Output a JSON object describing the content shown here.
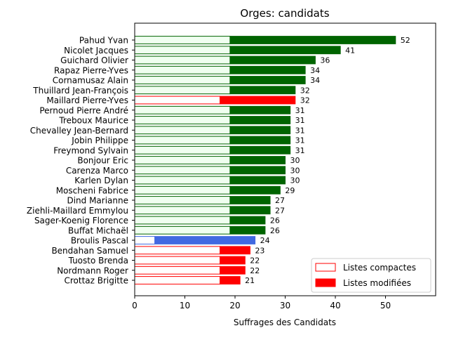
{
  "chart_data": {
    "type": "bar",
    "orientation": "horizontal",
    "stacked": true,
    "title": "Orges: candidats",
    "xlabel": "Suffrages des Candidats",
    "ylabel": "",
    "xlim": [
      0,
      60
    ],
    "xticks": [
      0,
      10,
      20,
      30,
      40,
      50
    ],
    "grid": false,
    "legend_position": "bottom-right",
    "legend": [
      {
        "label": "Listes compactes",
        "style": "outline",
        "color": "#ff0000"
      },
      {
        "label": "Listes modifiées",
        "style": "filled",
        "color": "#ff0000"
      }
    ],
    "colors": {
      "green": "#006400",
      "green_light": "#f0fff0",
      "red": "#ff0000",
      "red_light": "#ffffff",
      "blue": "#4169e1",
      "blue_light": "#ffffff"
    },
    "candidates": [
      {
        "name": "Pahud Yvan",
        "compact": 19,
        "total": 52,
        "group": "green"
      },
      {
        "name": "Nicolet Jacques",
        "compact": 19,
        "total": 41,
        "group": "green"
      },
      {
        "name": "Guichard Olivier",
        "compact": 19,
        "total": 36,
        "group": "green"
      },
      {
        "name": "Rapaz Pierre-Yves",
        "compact": 19,
        "total": 34,
        "group": "green"
      },
      {
        "name": "Cornamusaz Alain",
        "compact": 19,
        "total": 34,
        "group": "green"
      },
      {
        "name": "Thuillard Jean-François",
        "compact": 19,
        "total": 32,
        "group": "green"
      },
      {
        "name": "Maillard Pierre-Yves",
        "compact": 17,
        "total": 32,
        "group": "red"
      },
      {
        "name": "Pernoud Pierre André",
        "compact": 19,
        "total": 31,
        "group": "green"
      },
      {
        "name": "Treboux Maurice",
        "compact": 19,
        "total": 31,
        "group": "green"
      },
      {
        "name": "Chevalley Jean-Bernard",
        "compact": 19,
        "total": 31,
        "group": "green"
      },
      {
        "name": "Jobin Philippe",
        "compact": 19,
        "total": 31,
        "group": "green"
      },
      {
        "name": "Freymond Sylvain",
        "compact": 19,
        "total": 31,
        "group": "green"
      },
      {
        "name": "Bonjour Eric",
        "compact": 19,
        "total": 30,
        "group": "green"
      },
      {
        "name": "Carenza Marco",
        "compact": 19,
        "total": 30,
        "group": "green"
      },
      {
        "name": "Karlen Dylan",
        "compact": 19,
        "total": 30,
        "group": "green"
      },
      {
        "name": "Moscheni Fabrice",
        "compact": 19,
        "total": 29,
        "group": "green"
      },
      {
        "name": "Dind Marianne",
        "compact": 19,
        "total": 27,
        "group": "green"
      },
      {
        "name": "Ziehli-Maillard Emmylou",
        "compact": 19,
        "total": 27,
        "group": "green"
      },
      {
        "name": "Sager-Koenig Florence",
        "compact": 19,
        "total": 26,
        "group": "green"
      },
      {
        "name": "Buffat Michaël",
        "compact": 19,
        "total": 26,
        "group": "green"
      },
      {
        "name": "Broulis Pascal",
        "compact": 4,
        "total": 24,
        "group": "blue"
      },
      {
        "name": "Bendahan Samuel",
        "compact": 17,
        "total": 23,
        "group": "red"
      },
      {
        "name": "Tuosto Brenda",
        "compact": 17,
        "total": 22,
        "group": "red"
      },
      {
        "name": "Nordmann Roger",
        "compact": 17,
        "total": 22,
        "group": "red"
      },
      {
        "name": "Crottaz Brigitte",
        "compact": 17,
        "total": 21,
        "group": "red"
      }
    ]
  }
}
